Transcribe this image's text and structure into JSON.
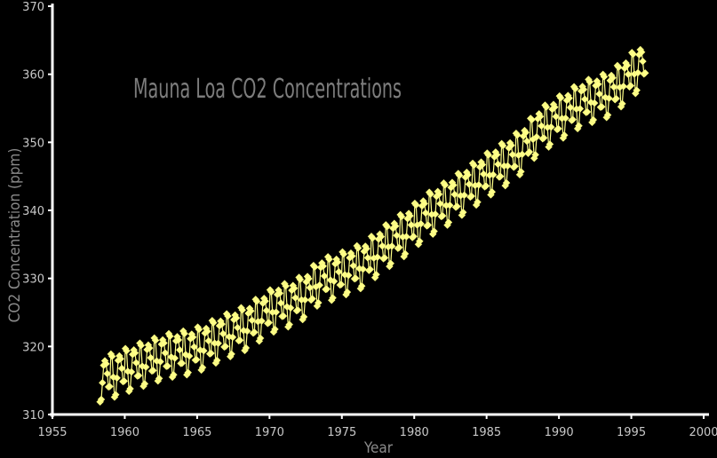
{
  "chart_data": {
    "type": "line",
    "title": "Mauna Loa CO2 Concentrations",
    "xlabel": "Year",
    "ylabel": "CO2 Concentration (ppm)",
    "xlim": [
      1955,
      2000
    ],
    "ylim": [
      310,
      370
    ],
    "xticks": [
      "1955",
      "1960",
      "1965",
      "1970",
      "1975",
      "1980",
      "1985",
      "1990",
      "1995",
      "2000"
    ],
    "yticks": [
      "310",
      "320",
      "330",
      "340",
      "350",
      "360",
      "370"
    ],
    "grid": false,
    "colors": {
      "background": "#000000",
      "series": "#ffff88",
      "axis": "#ffffff"
    },
    "series": [
      {
        "annual_mean": [
          {
            "year": 1958,
            "value": 315.3
          },
          {
            "year": 1959,
            "value": 316.0
          },
          {
            "year": 1960,
            "value": 316.9
          },
          {
            "year": 1961,
            "value": 317.6
          },
          {
            "year": 1962,
            "value": 318.4
          },
          {
            "year": 1963,
            "value": 318.9
          },
          {
            "year": 1964,
            "value": 319.2
          },
          {
            "year": 1965,
            "value": 320.0
          },
          {
            "year": 1966,
            "value": 321.1
          },
          {
            "year": 1967,
            "value": 322.0
          },
          {
            "year": 1968,
            "value": 322.9
          },
          {
            "year": 1969,
            "value": 324.4
          },
          {
            "year": 1970,
            "value": 325.7
          },
          {
            "year": 1971,
            "value": 326.3
          },
          {
            "year": 1972,
            "value": 327.5
          },
          {
            "year": 1973,
            "value": 329.7
          },
          {
            "year": 1974,
            "value": 330.2
          },
          {
            "year": 1975,
            "value": 331.1
          },
          {
            "year": 1976,
            "value": 332.0
          },
          {
            "year": 1977,
            "value": 333.8
          },
          {
            "year": 1978,
            "value": 335.4
          },
          {
            "year": 1979,
            "value": 336.8
          },
          {
            "year": 1980,
            "value": 338.7
          },
          {
            "year": 1981,
            "value": 340.1
          },
          {
            "year": 1982,
            "value": 341.4
          },
          {
            "year": 1983,
            "value": 342.9
          },
          {
            "year": 1984,
            "value": 344.4
          },
          {
            "year": 1985,
            "value": 345.9
          },
          {
            "year": 1986,
            "value": 347.2
          },
          {
            "year": 1987,
            "value": 348.9
          },
          {
            "year": 1988,
            "value": 351.5
          },
          {
            "year": 1989,
            "value": 352.9
          },
          {
            "year": 1990,
            "value": 354.2
          },
          {
            "year": 1991,
            "value": 355.6
          },
          {
            "year": 1992,
            "value": 356.4
          },
          {
            "year": 1993,
            "value": 357.1
          },
          {
            "year": 1994,
            "value": 358.9
          },
          {
            "year": 1995,
            "value": 360.9
          },
          {
            "year": 1996,
            "value": 362.6
          }
        ],
        "seasonal_amplitude": [
          3.2,
          2.8,
          -0.3,
          -3.3,
          -3.0,
          -0.6,
          1.9,
          2.5,
          2.0,
          0.5,
          -1.5,
          -1.5
        ],
        "start": 1958.25,
        "end": 1995.92,
        "marker": "diamond"
      }
    ]
  }
}
